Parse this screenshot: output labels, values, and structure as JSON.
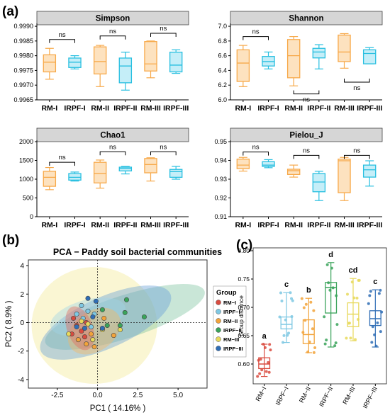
{
  "labels": {
    "a": "(a)",
    "b": "(b)",
    "c": "(c)"
  },
  "colors": {
    "RM": "#f7a94a",
    "IRPF": "#27bfe0",
    "strip_bg": "#d6d6d6"
  },
  "chart_data": [
    {
      "type": "box",
      "title": "Simpson",
      "categories": [
        "RM-I",
        "IRPF-I",
        "RM-II",
        "IRPF-II",
        "RM-III",
        "IRPF-III"
      ],
      "boxes": [
        [
          0.9972,
          0.99745,
          0.99778,
          0.99803,
          0.99825
        ],
        [
          0.99755,
          0.9976,
          0.99778,
          0.99792,
          0.998
        ],
        [
          0.99695,
          0.99738,
          0.9978,
          0.9983,
          0.99835
        ],
        [
          0.99683,
          0.99708,
          0.99765,
          0.99792,
          0.99812
        ],
        [
          0.99725,
          0.99748,
          0.99772,
          0.99848,
          0.9985
        ],
        [
          0.9974,
          0.99745,
          0.99768,
          0.99812,
          0.9982
        ]
      ],
      "yticks": [
        "0.9965",
        "0.9970",
        "0.9975",
        "0.9980",
        "0.9985",
        "0.9990"
      ],
      "ylim": [
        0.9965,
        0.99905
      ],
      "annotations": [
        {
          "from": 0,
          "to": 1,
          "text": "ns",
          "y": 0.99855,
          "dir": "down"
        },
        {
          "from": 2,
          "to": 3,
          "text": "ns",
          "y": 0.99867,
          "dir": "down"
        },
        {
          "from": 4,
          "to": 5,
          "text": "ns",
          "y": 0.99876,
          "dir": "down"
        }
      ]
    },
    {
      "type": "box",
      "title": "Shannon",
      "categories": [
        "RM-I",
        "IRPF-I",
        "RM-II",
        "IRPF-II",
        "RM-III",
        "IRPF-III"
      ],
      "boxes": [
        [
          6.18,
          6.25,
          6.5,
          6.68,
          6.74
        ],
        [
          6.42,
          6.46,
          6.52,
          6.59,
          6.65
        ],
        [
          6.19,
          6.3,
          6.6,
          6.82,
          6.86
        ],
        [
          6.42,
          6.57,
          6.65,
          6.7,
          6.75
        ],
        [
          6.43,
          6.52,
          6.65,
          6.88,
          6.9
        ],
        [
          6.49,
          6.49,
          6.63,
          6.68,
          6.71
        ]
      ],
      "yticks": [
        "6.0",
        "6.2",
        "6.4",
        "6.6",
        "6.8",
        "7.0"
      ],
      "ylim": [
        6.0,
        7.02
      ],
      "annotations": [
        {
          "from": 0,
          "to": 1,
          "text": "ns",
          "y": 6.86,
          "dir": "down"
        },
        {
          "from": 2,
          "to": 3,
          "text": "ns",
          "y": 6.08,
          "dir": "up"
        },
        {
          "from": 4,
          "to": 5,
          "text": "ns",
          "y": 6.24,
          "dir": "up"
        }
      ]
    },
    {
      "type": "box",
      "title": "Chao1",
      "categories": [
        "RM-I",
        "IRPF-I",
        "RM-II",
        "IRPF-II",
        "RM-III",
        "IRPF-III"
      ],
      "boxes": [
        [
          720,
          810,
          1050,
          1210,
          1310
        ],
        [
          950,
          975,
          1050,
          1150,
          1190
        ],
        [
          760,
          900,
          1150,
          1450,
          1510
        ],
        [
          1140,
          1220,
          1290,
          1320,
          1340
        ],
        [
          950,
          1170,
          1390,
          1550,
          1570
        ],
        [
          1000,
          1050,
          1200,
          1260,
          1340
        ]
      ],
      "yticks": [
        "0",
        "500",
        "1000",
        "1500",
        "2000"
      ],
      "ylim": [
        0,
        2000
      ],
      "annotations": [
        {
          "from": 0,
          "to": 1,
          "text": "ns",
          "y": 1450,
          "dir": "down"
        },
        {
          "from": 2,
          "to": 3,
          "text": "ns",
          "y": 1730,
          "dir": "down"
        },
        {
          "from": 4,
          "to": 5,
          "text": "ns",
          "y": 1730,
          "dir": "down"
        }
      ]
    },
    {
      "type": "box",
      "title": "Pielou_J",
      "categories": [
        "RM-I",
        "IRPF-I",
        "RM-II",
        "IRPF-II",
        "RM-III",
        "IRPF-III"
      ],
      "boxes": [
        [
          0.9343,
          0.9356,
          0.9375,
          0.9407,
          0.9416
        ],
        [
          0.9361,
          0.9368,
          0.9375,
          0.9393,
          0.9404
        ],
        [
          0.9311,
          0.9325,
          0.9345,
          0.9353,
          0.9375
        ],
        [
          0.9186,
          0.9233,
          0.9285,
          0.933,
          0.9342
        ],
        [
          0.9186,
          0.9228,
          0.9398,
          0.9407,
          0.9416
        ],
        [
          0.9263,
          0.9311,
          0.935,
          0.9375,
          0.9398
        ]
      ],
      "yticks": [
        "0.91",
        "0.92",
        "0.93",
        "0.94",
        "0.95"
      ],
      "ylim": [
        0.91,
        0.95
      ],
      "annotations": [
        {
          "from": 0,
          "to": 1,
          "text": "ns",
          "y": 0.9445,
          "dir": "down"
        },
        {
          "from": 2,
          "to": 3,
          "text": "ns",
          "y": 0.9427,
          "dir": "down"
        },
        {
          "from": 4,
          "to": 5,
          "text": "ns",
          "y": 0.9427,
          "dir": "down"
        }
      ]
    },
    {
      "type": "scatter",
      "title": "PCA − Paddy soil bacterial communities",
      "xlabel": "PC1 ( 14.16% )",
      "ylabel": "PC2 ( 8.9% )",
      "xlim": [
        -4.3,
        6.8
      ],
      "ylim": [
        -4.6,
        4.4
      ],
      "xticks": [
        -2.5,
        0.0,
        2.5,
        5.0
      ],
      "xtick_labels": [
        "-2.5",
        "0.0",
        "2.5",
        "5.0"
      ],
      "yticks": [
        -4,
        -2,
        0,
        2,
        4
      ],
      "ytick_labels": [
        "-4",
        "-2",
        "0",
        "2",
        "4"
      ],
      "legend": {
        "title": "Group",
        "placement": "right"
      },
      "series": [
        {
          "name": "RM−I",
          "color": "#d94b3f",
          "points": [
            [
              -1.3,
              -0.2
            ],
            [
              -1.0,
              -0.6
            ],
            [
              -1.5,
              0.3
            ],
            [
              -0.8,
              -1.0
            ],
            [
              -1.6,
              -0.8
            ],
            [
              -0.7,
              0.0
            ]
          ]
        },
        {
          "name": "IRPF−I",
          "color": "#7ec8e3",
          "points": [
            [
              -1.0,
              1.2
            ],
            [
              -0.6,
              0.8
            ],
            [
              -1.3,
              0.6
            ],
            [
              -0.4,
              -0.3
            ],
            [
              -0.9,
              0.3
            ],
            [
              -0.2,
              0.6
            ]
          ]
        },
        {
          "name": "RM−II",
          "color": "#f2a33a",
          "points": [
            [
              -0.7,
              -1.5
            ],
            [
              -1.2,
              -1.2
            ],
            [
              -0.2,
              -1.7
            ],
            [
              0.4,
              0.3
            ],
            [
              -0.4,
              -0.8
            ],
            [
              1.0,
              -0.9
            ]
          ]
        },
        {
          "name": "IRPF−II",
          "color": "#3aa35a",
          "points": [
            [
              0.3,
              0.9
            ],
            [
              1.7,
              0.7
            ],
            [
              2.9,
              0.4
            ],
            [
              1.4,
              -0.2
            ],
            [
              0.6,
              -0.2
            ],
            [
              1.8,
              1.6
            ]
          ]
        },
        {
          "name": "RM−III",
          "color": "#e8d95c",
          "points": [
            [
              -1.8,
              -0.8
            ],
            [
              -0.6,
              -0.1
            ],
            [
              0.3,
              -0.5
            ],
            [
              -1.0,
              0.1
            ],
            [
              -0.3,
              -1.2
            ],
            [
              1.4,
              -0.5
            ]
          ]
        },
        {
          "name": "IRPF−III",
          "color": "#2f6db5",
          "points": [
            [
              -0.6,
              1.7
            ],
            [
              -0.1,
              1.5
            ],
            [
              0.3,
              -0.4
            ],
            [
              -0.8,
              -0.4
            ],
            [
              -1.3,
              -0.3
            ],
            [
              -0.3,
              0.4
            ]
          ]
        }
      ],
      "ellipses": [
        {
          "group": "RM−III",
          "cx": -0.2,
          "cy": -0.2,
          "rx": 3.9,
          "ry": 4.1,
          "angle": 0,
          "color": "#f3ea95"
        },
        {
          "group": "IRPF−II",
          "cx": 1.7,
          "cy": 0.4,
          "rx": 5.2,
          "ry": 1.5,
          "angle": 18,
          "color": "#7fc3a0"
        },
        {
          "group": "IRPF−III",
          "cx": 0.5,
          "cy": 0.0,
          "rx": 4.4,
          "ry": 1.8,
          "angle": 24,
          "color": "#6a9fd6"
        },
        {
          "group": "IRPF−I",
          "cx": -0.6,
          "cy": 0.4,
          "rx": 2.4,
          "ry": 1.2,
          "angle": 15,
          "color": "#9fd5e8"
        },
        {
          "group": "RM−II",
          "cx": -0.2,
          "cy": -0.6,
          "rx": 1.8,
          "ry": 1.4,
          "angle": 35,
          "color": "#f5b862"
        },
        {
          "group": "RM−I",
          "cx": -1.1,
          "cy": -0.4,
          "rx": 0.8,
          "ry": 1.6,
          "angle": 20,
          "color": "#e36a5e"
        }
      ]
    },
    {
      "type": "box",
      "title": "",
      "ylabel": "Group distance",
      "categories": [
        "RM−I",
        "IRPF−I",
        "RM−II",
        "IRPF−II",
        "RM−III",
        "IRPF−III"
      ],
      "colors": [
        "#d94b3f",
        "#7ec8e3",
        "#f2a33a",
        "#3aa35a",
        "#e8d95c",
        "#2f6db5"
      ],
      "boxes": [
        [
          0.578,
          0.592,
          0.6,
          0.611,
          0.635
        ],
        [
          0.638,
          0.662,
          0.67,
          0.683,
          0.726
        ],
        [
          0.62,
          0.636,
          0.652,
          0.678,
          0.716
        ],
        [
          0.63,
          0.69,
          0.735,
          0.744,
          0.779
        ],
        [
          0.641,
          0.666,
          0.688,
          0.708,
          0.751
        ],
        [
          0.63,
          0.668,
          0.68,
          0.694,
          0.731
        ]
      ],
      "letters": [
        "a",
        "c",
        "b",
        "d",
        "cd",
        "c"
      ],
      "yticks": [
        "0.60",
        "0.65",
        "0.70",
        "0.75",
        "0.80"
      ],
      "ylim": [
        0.565,
        0.805
      ]
    }
  ]
}
